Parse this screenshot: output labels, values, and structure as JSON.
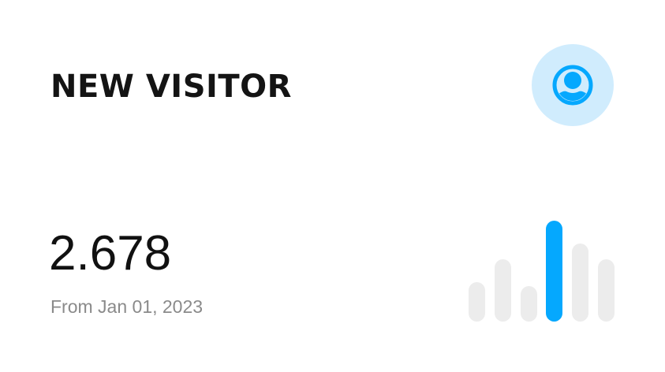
{
  "card": {
    "title": "NEW VISITOR",
    "value": "2.678",
    "subtitle": "From Jan 01, 2023",
    "icon": "user-circle-icon"
  },
  "colors": {
    "accent": "#05a8fe",
    "badge_bg": "#d0ecfd",
    "bar_muted": "#ececec"
  },
  "chart_data": {
    "type": "bar",
    "values": [
      39,
      62,
      35,
      100,
      77,
      62
    ],
    "highlight_index": 3,
    "axes": false,
    "grid": false
  }
}
